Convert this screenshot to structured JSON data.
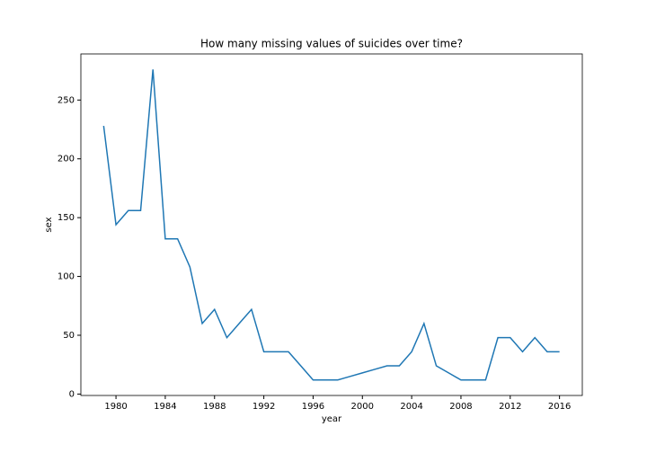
{
  "chart_data": {
    "type": "line",
    "title": "How many missing values of suicides over time?",
    "x_label": "year",
    "y_label": "sex",
    "x": [
      1979,
      1980,
      1981,
      1982,
      1983,
      1984,
      1985,
      1986,
      1987,
      1988,
      1989,
      1990,
      1991,
      1992,
      1993,
      1994,
      1995,
      1996,
      1997,
      1998,
      1999,
      2000,
      2001,
      2002,
      2003,
      2004,
      2005,
      2006,
      2007,
      2008,
      2009,
      2010,
      2011,
      2012,
      2013,
      2014,
      2015,
      2016
    ],
    "series": [
      {
        "color": "#1f77b4",
        "values": [
          228,
          144,
          156,
          156,
          276,
          132,
          132,
          108,
          60,
          72,
          48,
          60,
          72,
          36,
          36,
          36,
          24,
          12,
          12,
          12,
          15,
          18,
          21,
          24,
          24,
          36,
          60,
          24,
          18,
          12,
          12,
          12,
          48,
          48,
          36,
          48,
          36,
          36
        ]
      }
    ],
    "xlim": [
      1977.15,
      2017.85
    ],
    "xticks": [
      1980,
      1984,
      1988,
      1992,
      1996,
      2000,
      2004,
      2008,
      2012,
      2016
    ],
    "ylim": [
      -1.2,
      289.2
    ],
    "yticks": [
      0,
      50,
      100,
      150,
      200,
      250
    ]
  }
}
